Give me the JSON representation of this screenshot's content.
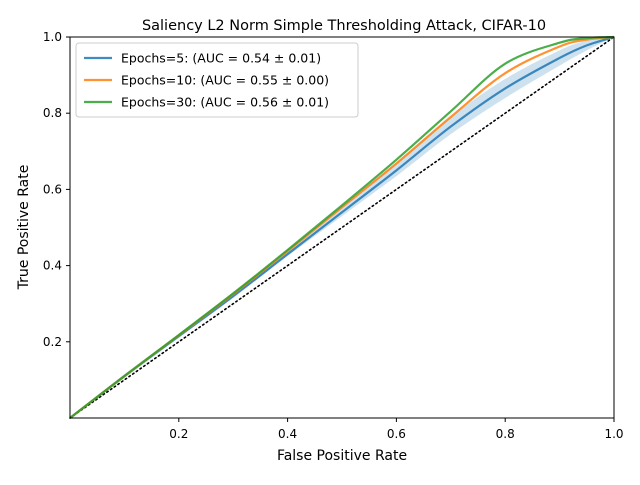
{
  "chart_data": {
    "type": "line",
    "title": "Saliency L2 Norm Simple Thresholding Attack, CIFAR-10",
    "xlabel": "False Positive Rate",
    "ylabel": "True Positive Rate",
    "xlim": [
      0,
      1
    ],
    "ylim": [
      0,
      1
    ],
    "x_ticks": [
      0.2,
      0.4,
      0.6,
      0.8,
      1.0
    ],
    "x_tick_labels": [
      "0.2",
      "0.4",
      "0.6",
      "0.8",
      "1.0"
    ],
    "y_ticks": [
      0.2,
      0.4,
      0.6,
      0.8,
      1.0
    ],
    "y_tick_labels": [
      "0.2",
      "0.4",
      "0.6",
      "0.8",
      "1.0"
    ],
    "grid": false,
    "legend_position": "top-left",
    "reference_line": {
      "style": "dotted",
      "color": "#000000",
      "x": [
        0,
        1
      ],
      "y": [
        0,
        1
      ]
    },
    "series": [
      {
        "name": "Epochs=5: (AUC = 0.54 ± 0.01)",
        "color": "#1f77b4",
        "x": [
          0,
          0.1,
          0.2,
          0.3,
          0.4,
          0.5,
          0.6,
          0.7,
          0.8,
          0.9,
          0.95,
          1.0
        ],
        "y": [
          0,
          0.11,
          0.215,
          0.32,
          0.43,
          0.54,
          0.65,
          0.765,
          0.865,
          0.945,
          0.978,
          1.0
        ],
        "band_lower": [
          0,
          0.105,
          0.21,
          0.315,
          0.425,
          0.53,
          0.635,
          0.745,
          0.84,
          0.925,
          0.965,
          1.0
        ],
        "band_upper": [
          0,
          0.115,
          0.22,
          0.327,
          0.44,
          0.555,
          0.67,
          0.79,
          0.89,
          0.965,
          0.99,
          1.0
        ]
      },
      {
        "name": "Epochs=10: (AUC = 0.55 ± 0.00)",
        "color": "#ff7f0e",
        "x": [
          0,
          0.1,
          0.2,
          0.3,
          0.4,
          0.5,
          0.6,
          0.7,
          0.8,
          0.9,
          0.95,
          1.0
        ],
        "y": [
          0,
          0.11,
          0.217,
          0.325,
          0.438,
          0.553,
          0.668,
          0.79,
          0.905,
          0.975,
          0.993,
          1.0
        ]
      },
      {
        "name": "Epochs=30: (AUC = 0.56 ± 0.01)",
        "color": "#2ca02c",
        "x": [
          0,
          0.1,
          0.2,
          0.3,
          0.4,
          0.5,
          0.6,
          0.7,
          0.8,
          0.9,
          0.95,
          1.0
        ],
        "y": [
          0,
          0.11,
          0.218,
          0.327,
          0.441,
          0.558,
          0.678,
          0.805,
          0.93,
          0.985,
          0.997,
          1.0
        ]
      }
    ]
  }
}
